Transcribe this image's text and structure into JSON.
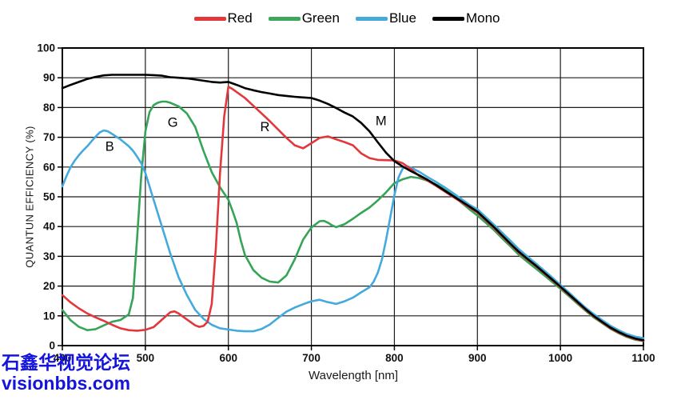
{
  "legend": {
    "items": [
      {
        "label": "Red",
        "color": "#e2383c"
      },
      {
        "label": "Green",
        "color": "#3da75c"
      },
      {
        "label": "Blue",
        "color": "#44aadd"
      },
      {
        "label": "Mono",
        "color": "#000000"
      }
    ]
  },
  "watermark": {
    "line1": "石鑫华视觉论坛",
    "line2": "visionbbs.com",
    "color": "#1414dd"
  },
  "chart_data": {
    "type": "line",
    "title": "",
    "xlabel": "Wavelength [nm]",
    "ylabel": "QUANTUN EFFICIENCY (%)",
    "xlim": [
      400,
      1100
    ],
    "ylim": [
      0,
      100
    ],
    "x_ticks": [
      400,
      500,
      600,
      700,
      800,
      900,
      1000,
      1100
    ],
    "y_ticks": [
      0,
      10,
      20,
      30,
      40,
      50,
      60,
      70,
      80,
      90,
      100
    ],
    "grid": true,
    "legend_position": "top-center",
    "annotations": [
      {
        "text": "B",
        "nm": 457,
        "pct": 67
      },
      {
        "text": "G",
        "nm": 533,
        "pct": 75
      },
      {
        "text": "R",
        "nm": 644,
        "pct": 73.5
      },
      {
        "text": "M",
        "nm": 784,
        "pct": 75.5
      }
    ],
    "series": [
      {
        "name": "Green",
        "color": "#35a457",
        "points": [
          [
            400,
            12
          ],
          [
            410,
            8.5
          ],
          [
            420,
            6.3
          ],
          [
            430,
            5.2
          ],
          [
            440,
            5.5
          ],
          [
            450,
            6.8
          ],
          [
            460,
            8
          ],
          [
            470,
            8.6
          ],
          [
            480,
            10.5
          ],
          [
            485,
            16
          ],
          [
            490,
            36
          ],
          [
            495,
            57
          ],
          [
            500,
            72
          ],
          [
            505,
            78.5
          ],
          [
            510,
            80.8
          ],
          [
            515,
            81.6
          ],
          [
            520,
            82
          ],
          [
            525,
            82
          ],
          [
            530,
            81.6
          ],
          [
            540,
            80.4
          ],
          [
            550,
            78
          ],
          [
            560,
            73.5
          ],
          [
            570,
            65.4
          ],
          [
            580,
            58.3
          ],
          [
            590,
            53.2
          ],
          [
            600,
            49
          ],
          [
            605,
            45.3
          ],
          [
            610,
            41.2
          ],
          [
            615,
            35.3
          ],
          [
            620,
            30.4
          ],
          [
            630,
            25.4
          ],
          [
            640,
            22.8
          ],
          [
            650,
            21.5
          ],
          [
            660,
            21.2
          ],
          [
            670,
            23.6
          ],
          [
            680,
            29
          ],
          [
            690,
            35.6
          ],
          [
            700,
            39.7
          ],
          [
            710,
            41.8
          ],
          [
            715,
            41.9
          ],
          [
            720,
            41.3
          ],
          [
            725,
            40.4
          ],
          [
            730,
            39.8
          ],
          [
            740,
            40.8
          ],
          [
            750,
            42.6
          ],
          [
            760,
            44.6
          ],
          [
            770,
            46.4
          ],
          [
            780,
            48.8
          ],
          [
            790,
            51.5
          ],
          [
            800,
            54.6
          ],
          [
            810,
            55.9
          ],
          [
            820,
            56.7
          ],
          [
            830,
            56.3
          ],
          [
            840,
            55.4
          ],
          [
            850,
            54.1
          ],
          [
            860,
            52.7
          ],
          [
            870,
            50.7
          ],
          [
            880,
            48.2
          ],
          [
            890,
            45.9
          ],
          [
            900,
            43.7
          ],
          [
            910,
            41.3
          ],
          [
            920,
            38.8
          ],
          [
            930,
            36
          ],
          [
            940,
            33.3
          ],
          [
            950,
            30.5
          ],
          [
            960,
            28.2
          ],
          [
            970,
            26
          ],
          [
            980,
            23.7
          ],
          [
            990,
            21.4
          ],
          [
            1000,
            19.1
          ],
          [
            1010,
            16.7
          ],
          [
            1020,
            14.2
          ],
          [
            1030,
            11.8
          ],
          [
            1040,
            9.5
          ],
          [
            1050,
            7.6
          ],
          [
            1060,
            5.7
          ],
          [
            1070,
            4.2
          ],
          [
            1080,
            2.9
          ],
          [
            1090,
            2
          ],
          [
            1100,
            1.5
          ]
        ]
      },
      {
        "name": "Blue",
        "color": "#44aadd",
        "points": [
          [
            400,
            53.5
          ],
          [
            405,
            57
          ],
          [
            410,
            60
          ],
          [
            415,
            62.2
          ],
          [
            420,
            64
          ],
          [
            425,
            65.6
          ],
          [
            430,
            67
          ],
          [
            435,
            68.6
          ],
          [
            440,
            70.2
          ],
          [
            445,
            71.6
          ],
          [
            450,
            72.3
          ],
          [
            455,
            72
          ],
          [
            460,
            71.1
          ],
          [
            470,
            69.3
          ],
          [
            480,
            67
          ],
          [
            485,
            65.5
          ],
          [
            490,
            63.5
          ],
          [
            495,
            61.3
          ],
          [
            500,
            58
          ],
          [
            510,
            49
          ],
          [
            520,
            40
          ],
          [
            530,
            31
          ],
          [
            540,
            23
          ],
          [
            550,
            17
          ],
          [
            560,
            12
          ],
          [
            570,
            9
          ],
          [
            580,
            7
          ],
          [
            590,
            5.8
          ],
          [
            600,
            5.4
          ],
          [
            610,
            5
          ],
          [
            620,
            4.8
          ],
          [
            630,
            4.8
          ],
          [
            640,
            5.6
          ],
          [
            650,
            7.1
          ],
          [
            660,
            9.3
          ],
          [
            670,
            11.4
          ],
          [
            680,
            12.8
          ],
          [
            690,
            13.9
          ],
          [
            700,
            14.9
          ],
          [
            710,
            15.4
          ],
          [
            720,
            14.6
          ],
          [
            730,
            14
          ],
          [
            740,
            14.9
          ],
          [
            750,
            16.1
          ],
          [
            760,
            17.9
          ],
          [
            770,
            19.6
          ],
          [
            775,
            21.5
          ],
          [
            780,
            24.5
          ],
          [
            785,
            29
          ],
          [
            790,
            35.5
          ],
          [
            795,
            43
          ],
          [
            800,
            50.5
          ],
          [
            805,
            56.5
          ],
          [
            810,
            59.5
          ],
          [
            815,
            60.3
          ],
          [
            820,
            59.8
          ],
          [
            830,
            58.4
          ],
          [
            840,
            56.6
          ],
          [
            850,
            55
          ],
          [
            860,
            53.3
          ],
          [
            870,
            51.4
          ],
          [
            880,
            49.4
          ],
          [
            890,
            47.4
          ],
          [
            900,
            45.8
          ],
          [
            910,
            43.2
          ],
          [
            920,
            40.6
          ],
          [
            930,
            37.9
          ],
          [
            940,
            35.2
          ],
          [
            950,
            32.4
          ],
          [
            960,
            30
          ],
          [
            970,
            27.7
          ],
          [
            980,
            25.3
          ],
          [
            990,
            22.9
          ],
          [
            1000,
            20.4
          ],
          [
            1010,
            17.9
          ],
          [
            1020,
            15.3
          ],
          [
            1030,
            12.8
          ],
          [
            1040,
            10.6
          ],
          [
            1050,
            8.6
          ],
          [
            1060,
            6.7
          ],
          [
            1070,
            5.2
          ],
          [
            1080,
            3.9
          ],
          [
            1090,
            3
          ],
          [
            1100,
            2.5
          ]
        ]
      },
      {
        "name": "Red",
        "color": "#e2383c",
        "points": [
          [
            400,
            17
          ],
          [
            410,
            14.5
          ],
          [
            420,
            12.5
          ],
          [
            430,
            10.8
          ],
          [
            440,
            9.5
          ],
          [
            450,
            8.3
          ],
          [
            460,
            7
          ],
          [
            470,
            5.8
          ],
          [
            480,
            5.2
          ],
          [
            490,
            5
          ],
          [
            500,
            5.3
          ],
          [
            510,
            6.2
          ],
          [
            520,
            8.7
          ],
          [
            530,
            11.2
          ],
          [
            535,
            11.5
          ],
          [
            540,
            10.8
          ],
          [
            550,
            8.8
          ],
          [
            560,
            6.8
          ],
          [
            565,
            6.3
          ],
          [
            570,
            6.6
          ],
          [
            575,
            8
          ],
          [
            580,
            14
          ],
          [
            585,
            33
          ],
          [
            590,
            58
          ],
          [
            595,
            77
          ],
          [
            600,
            87
          ],
          [
            605,
            86.2
          ],
          [
            610,
            85.2
          ],
          [
            620,
            83.2
          ],
          [
            630,
            80.6
          ],
          [
            640,
            78
          ],
          [
            650,
            75.4
          ],
          [
            660,
            72.6
          ],
          [
            670,
            69.8
          ],
          [
            680,
            67.3
          ],
          [
            690,
            66.3
          ],
          [
            700,
            68
          ],
          [
            710,
            69.8
          ],
          [
            720,
            70.3
          ],
          [
            730,
            69.3
          ],
          [
            740,
            68.4
          ],
          [
            750,
            67.3
          ],
          [
            760,
            64.6
          ],
          [
            770,
            63
          ],
          [
            780,
            62.4
          ],
          [
            790,
            62.3
          ],
          [
            800,
            62.2
          ],
          [
            810,
            61.3
          ],
          [
            820,
            59.3
          ],
          [
            830,
            57
          ],
          [
            840,
            55.4
          ],
          [
            850,
            53.7
          ],
          [
            860,
            51.9
          ],
          [
            870,
            50.1
          ],
          [
            880,
            48.3
          ],
          [
            890,
            46.5
          ],
          [
            900,
            44.7
          ],
          [
            910,
            42.1
          ],
          [
            920,
            39.5
          ],
          [
            930,
            36.7
          ],
          [
            940,
            34
          ],
          [
            950,
            31.2
          ],
          [
            960,
            29
          ],
          [
            970,
            26.8
          ],
          [
            980,
            24.4
          ],
          [
            990,
            22
          ],
          [
            1000,
            19.6
          ],
          [
            1010,
            17.1
          ],
          [
            1020,
            14.6
          ],
          [
            1030,
            12.1
          ],
          [
            1040,
            9.8
          ],
          [
            1050,
            7.8
          ],
          [
            1060,
            5.9
          ],
          [
            1070,
            4.4
          ],
          [
            1080,
            3.1
          ],
          [
            1090,
            2.2
          ],
          [
            1100,
            1.6
          ]
        ]
      },
      {
        "name": "Mono",
        "color": "#000000",
        "points": [
          [
            400,
            86.5
          ],
          [
            410,
            87.6
          ],
          [
            420,
            88.6
          ],
          [
            430,
            89.6
          ],
          [
            440,
            90.3
          ],
          [
            450,
            90.8
          ],
          [
            460,
            91
          ],
          [
            470,
            91
          ],
          [
            480,
            91
          ],
          [
            490,
            91
          ],
          [
            500,
            91
          ],
          [
            510,
            90.9
          ],
          [
            520,
            90.7
          ],
          [
            530,
            90.2
          ],
          [
            540,
            90
          ],
          [
            550,
            89.8
          ],
          [
            560,
            89.4
          ],
          [
            570,
            89
          ],
          [
            580,
            88.6
          ],
          [
            590,
            88.4
          ],
          [
            600,
            88.6
          ],
          [
            610,
            87.6
          ],
          [
            620,
            86.5
          ],
          [
            630,
            85.8
          ],
          [
            640,
            85.2
          ],
          [
            650,
            84.7
          ],
          [
            660,
            84.2
          ],
          [
            670,
            83.9
          ],
          [
            680,
            83.6
          ],
          [
            690,
            83.4
          ],
          [
            700,
            83.2
          ],
          [
            710,
            82.3
          ],
          [
            720,
            81.2
          ],
          [
            730,
            79.8
          ],
          [
            740,
            78.3
          ],
          [
            750,
            77
          ],
          [
            760,
            74.8
          ],
          [
            770,
            72
          ],
          [
            780,
            68.3
          ],
          [
            790,
            64.8
          ],
          [
            800,
            62
          ],
          [
            810,
            60.2
          ],
          [
            820,
            58.6
          ],
          [
            830,
            57.2
          ],
          [
            840,
            55.7
          ],
          [
            850,
            54
          ],
          [
            860,
            52.2
          ],
          [
            870,
            50.4
          ],
          [
            880,
            48.6
          ],
          [
            890,
            46.8
          ],
          [
            900,
            45
          ],
          [
            910,
            42.4
          ],
          [
            920,
            39.8
          ],
          [
            930,
            37
          ],
          [
            940,
            34.2
          ],
          [
            950,
            31.5
          ],
          [
            960,
            29.2
          ],
          [
            970,
            27
          ],
          [
            980,
            24.6
          ],
          [
            990,
            22.2
          ],
          [
            1000,
            19.8
          ],
          [
            1010,
            17.3
          ],
          [
            1020,
            14.8
          ],
          [
            1030,
            12.3
          ],
          [
            1040,
            10
          ],
          [
            1050,
            8
          ],
          [
            1060,
            6.1
          ],
          [
            1070,
            4.6
          ],
          [
            1080,
            3.3
          ],
          [
            1090,
            2.4
          ],
          [
            1100,
            1.8
          ]
        ]
      }
    ]
  }
}
